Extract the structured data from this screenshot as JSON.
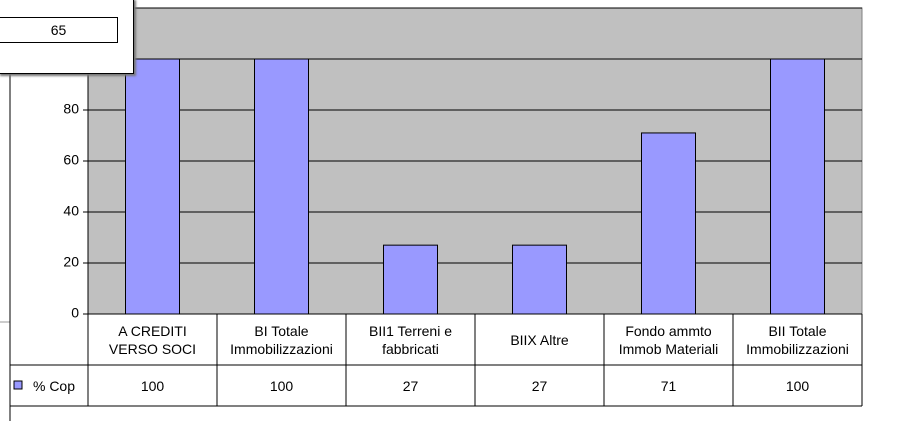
{
  "chart_data": {
    "type": "bar",
    "categories": [
      "A CREDITI VERSO SOCI",
      "BI Totale Immobilizzazioni",
      "BII1 Terreni e fabbricati",
      "BIIX Altre",
      "Fondo ammto Immob Materiali",
      "BII Totale Immobilizzazioni"
    ],
    "series": [
      {
        "name": "% Cop",
        "color": "#9999ff",
        "values": [
          100,
          100,
          27,
          27,
          71,
          100
        ]
      }
    ],
    "ylim": [
      0,
      120
    ],
    "yticks": [
      0,
      20,
      40,
      60,
      80,
      100,
      120
    ],
    "grid": true
  },
  "popup": {
    "value": "65"
  }
}
